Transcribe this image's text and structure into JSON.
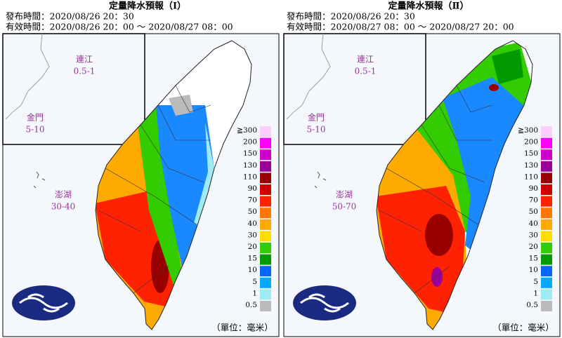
{
  "panels": [
    {
      "title": "定量降水預報（Ⅰ）",
      "issued": "發布時間：2020/08/26 20：30",
      "valid": "有效時間：2020/08/26 20：00 ～ 2020/08/27 08：00",
      "insets": [
        {
          "name": "連江",
          "value": "0.5-1"
        },
        {
          "name": "金門",
          "value": "5-10"
        },
        {
          "name": "澎湖",
          "value": "30-40"
        }
      ],
      "unit": "（單位：毫米）"
    },
    {
      "title": "定量降水預報（Ⅱ）",
      "issued": "發布時間：2020/08/26 20：30",
      "valid": "有效時間：2020/08/27 08：00 ～ 2020/08/27 20：00",
      "insets": [
        {
          "name": "連江",
          "value": "0.5-1"
        },
        {
          "name": "金門",
          "value": "5-10"
        },
        {
          "name": "澎湖",
          "value": "50-70"
        }
      ],
      "unit": "（單位：毫米）"
    }
  ],
  "legend": [
    {
      "label": "≧300",
      "color": "#ffccff"
    },
    {
      "label": "200",
      "color": "#ff00ff"
    },
    {
      "label": "150",
      "color": "#cc00cc"
    },
    {
      "label": "130",
      "color": "#990099"
    },
    {
      "label": "110",
      "color": "#990000"
    },
    {
      "label": "90",
      "color": "#cc0000"
    },
    {
      "label": "70",
      "color": "#ff2200"
    },
    {
      "label": "50",
      "color": "#ff7700"
    },
    {
      "label": "40",
      "color": "#ffaa00"
    },
    {
      "label": "30",
      "color": "#ffdd00"
    },
    {
      "label": "20",
      "color": "#33cc00"
    },
    {
      "label": "15",
      "color": "#009900"
    },
    {
      "label": "10",
      "color": "#0066ff"
    },
    {
      "label": "5",
      "color": "#00aaff"
    },
    {
      "label": "1",
      "color": "#9feaf5"
    },
    {
      "label": "0.5",
      "color": "#bbbbbb"
    }
  ]
}
